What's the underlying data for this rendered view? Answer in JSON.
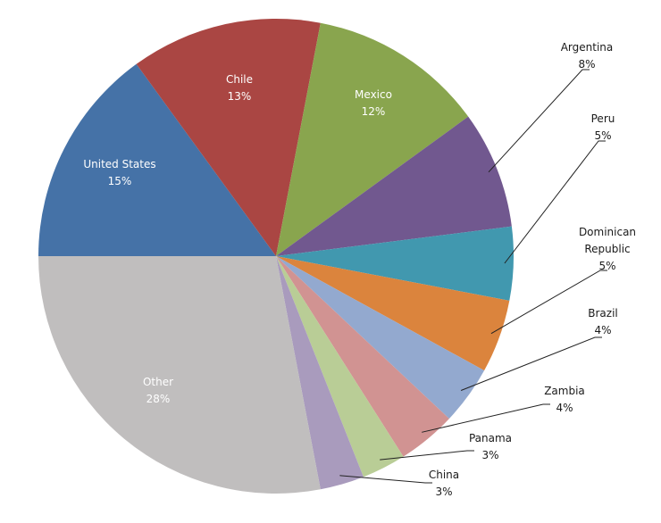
{
  "chart_data": {
    "type": "pie",
    "slices": [
      {
        "label": "United States",
        "display_label": [
          "United States"
        ],
        "pct_label": "15%",
        "value": 15,
        "color": "#4572a7"
      },
      {
        "label": "Chile",
        "display_label": [
          "Chile"
        ],
        "pct_label": "13%",
        "value": 13,
        "color": "#aa4643"
      },
      {
        "label": "Mexico",
        "display_label": [
          "Mexico"
        ],
        "pct_label": "12%",
        "value": 12,
        "color": "#89a54e"
      },
      {
        "label": "Argentina",
        "display_label": [
          "Argentina"
        ],
        "pct_label": "8%",
        "value": 8,
        "color": "#71588f"
      },
      {
        "label": "Peru",
        "display_label": [
          "Peru"
        ],
        "pct_label": "5%",
        "value": 5,
        "color": "#4198af"
      },
      {
        "label": "Dominican Republic",
        "display_label": [
          "Dominican",
          "Republic"
        ],
        "pct_label": "5%",
        "value": 5,
        "color": "#db843d"
      },
      {
        "label": "Brazil",
        "display_label": [
          "Brazil"
        ],
        "pct_label": "4%",
        "value": 4,
        "color": "#93a9cf"
      },
      {
        "label": "Zambia",
        "display_label": [
          "Zambia"
        ],
        "pct_label": "4%",
        "value": 4,
        "color": "#d19392"
      },
      {
        "label": "Panama",
        "display_label": [
          "Panama"
        ],
        "pct_label": "3%",
        "value": 3,
        "color": "#b9cd96"
      },
      {
        "label": "China",
        "display_label": [
          "China"
        ],
        "pct_label": "3%",
        "value": 3,
        "color": "#a99bbd"
      },
      {
        "label": "Other",
        "display_label": [
          "Other"
        ],
        "pct_label": "28%",
        "value": 28,
        "color": "#c0bebe"
      }
    ],
    "start_angle": "9 o'clock, clockwise",
    "legend": "none",
    "labels": "inside for large slices, outside with leader lines for small slices"
  }
}
